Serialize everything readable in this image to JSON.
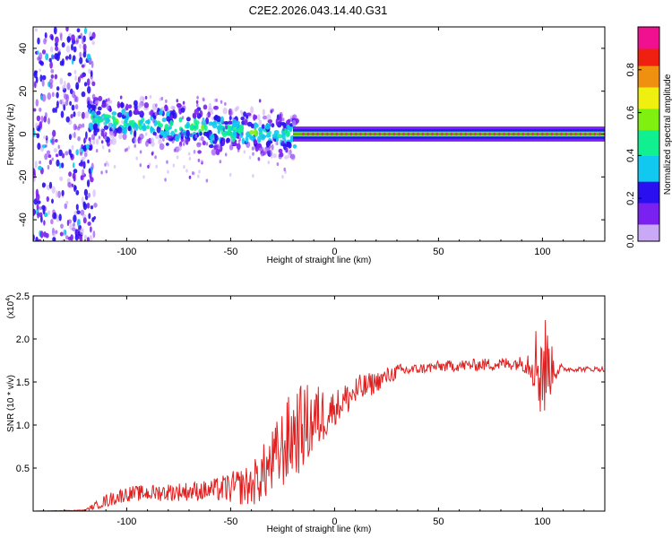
{
  "title": "C2E2.2026.043.14.40.G31",
  "chart_data": [
    {
      "type": "heatmap",
      "title": "C2E2.2026.043.14.40.G31",
      "xlabel": "Height of straight line (km)",
      "ylabel": "Frequency (Hz)",
      "xlim": [
        -145,
        130
      ],
      "ylim": [
        -50,
        50
      ],
      "x_ticks": [
        -100,
        -50,
        0,
        50,
        100
      ],
      "x_tick_labels": [
        "-100",
        "-50",
        "0",
        "50",
        "100"
      ],
      "y_ticks": [
        -40,
        -20,
        0,
        20,
        40
      ],
      "y_tick_labels": [
        "-40",
        "-20",
        "0",
        "20",
        "40"
      ],
      "colorbar": {
        "label": "Normalized spectral amplitude",
        "range": [
          0,
          1
        ],
        "ticks": [
          0.0,
          0.2,
          0.4,
          0.6,
          0.8
        ],
        "tick_labels": [
          "0.0",
          "0.2",
          "0.4",
          "0.6",
          "0.8"
        ],
        "colormap": "rainbow"
      },
      "features": {
        "noise_region_x": [
          -145,
          -115
        ],
        "signal_line_frequency": 0,
        "peak_line_start_x": -15
      },
      "grid": false
    },
    {
      "type": "line",
      "xlabel": "Height of straight line (km)",
      "ylabel": "SNR (10 * v/v)",
      "y_scale_label": "(x10",
      "y_scale_exponent": "4",
      "xlim": [
        -145,
        130
      ],
      "ylim": [
        0,
        2.5
      ],
      "x_ticks": [
        -100,
        -50,
        0,
        50,
        100
      ],
      "x_tick_labels": [
        "-100",
        "-50",
        "0",
        "50",
        "100"
      ],
      "y_ticks": [
        0.5,
        1.0,
        1.5,
        2.0,
        2.5
      ],
      "y_tick_labels": [
        "0.5",
        "1.0",
        "1.5",
        "2.0",
        "2.5"
      ],
      "color": "#e02020",
      "envelope": {
        "x": [
          -145,
          -120,
          -110,
          -100,
          -80,
          -60,
          -40,
          -30,
          -20,
          -10,
          0,
          10,
          20,
          30,
          50,
          70,
          90,
          95,
          100,
          105,
          110,
          130
        ],
        "y": [
          0.0,
          0.01,
          0.12,
          0.2,
          0.22,
          0.24,
          0.3,
          0.55,
          0.9,
          1.05,
          1.2,
          1.38,
          1.5,
          1.62,
          1.68,
          1.7,
          1.72,
          1.74,
          1.7,
          1.66,
          1.65,
          1.65
        ]
      },
      "amplitude": {
        "x": [
          -145,
          -120,
          -110,
          -60,
          -40,
          -30,
          -20,
          -10,
          0,
          10,
          20,
          40,
          90,
          95,
          100,
          105,
          110,
          130
        ],
        "y": [
          0.0,
          0.005,
          0.08,
          0.12,
          0.25,
          0.4,
          0.55,
          0.45,
          0.2,
          0.2,
          0.12,
          0.06,
          0.08,
          0.25,
          0.8,
          0.2,
          0.03,
          0.03
        ]
      },
      "grid": false
    }
  ]
}
